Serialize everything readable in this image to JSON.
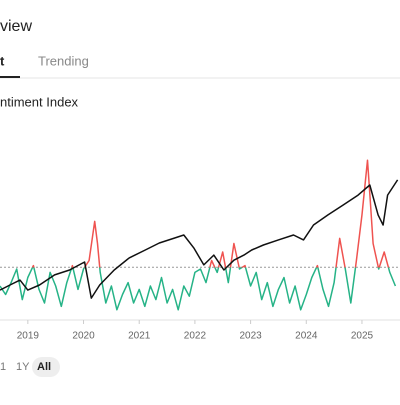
{
  "header": {
    "title": "view"
  },
  "tabs": [
    {
      "label": "t",
      "active": true
    },
    {
      "label": "Trending",
      "active": false
    }
  ],
  "chart_data": {
    "type": "line",
    "title": "ntiment Index",
    "xlim": [
      2018.5,
      2025.64
    ],
    "xticks": [
      2019,
      2020,
      2021,
      2022,
      2023,
      2024,
      2025
    ],
    "ylim": [
      0,
      100
    ],
    "threshold": 31,
    "above_color": "#ef5350",
    "series": [
      {
        "name": "Index",
        "color": "#111111",
        "x": [
          2018.5,
          2018.68,
          2018.86,
          2019.0,
          2019.21,
          2019.48,
          2019.75,
          2020.02,
          2020.14,
          2020.29,
          2020.55,
          2020.82,
          2021.11,
          2021.36,
          2021.63,
          2021.8,
          2021.98,
          2022.16,
          2022.34,
          2022.52,
          2022.7,
          2022.88,
          2023.02,
          2023.23,
          2023.5,
          2023.77,
          2023.95,
          2024.13,
          2024.39,
          2024.66,
          2024.93,
          2025.14,
          2025.29,
          2025.38,
          2025.46,
          2025.64
        ],
        "values": [
          17.6,
          20.6,
          23.5,
          17.6,
          20.6,
          26.5,
          29.4,
          34.1,
          12.9,
          20.6,
          29.4,
          36.5,
          41.2,
          45.3,
          48.2,
          50,
          42.4,
          32.4,
          38.2,
          29.4,
          35.2,
          38.2,
          41.2,
          44.1,
          47.1,
          50,
          47.1,
          55.9,
          61.8,
          67.6,
          73.5,
          79.4,
          61.8,
          55.9,
          73.5,
          82.4
        ]
      },
      {
        "name": "Sentiment",
        "color": "#26b387",
        "x": [
          2018.5,
          2018.6,
          2018.7,
          2018.8,
          2018.9,
          2019.0,
          2019.1,
          2019.2,
          2019.3,
          2019.4,
          2019.5,
          2019.6,
          2019.7,
          2019.8,
          2019.9,
          2020.0,
          2020.1,
          2020.2,
          2020.25,
          2020.3,
          2020.4,
          2020.5,
          2020.6,
          2020.7,
          2020.8,
          2020.9,
          2021.0,
          2021.1,
          2021.2,
          2021.3,
          2021.4,
          2021.5,
          2021.6,
          2021.7,
          2021.8,
          2021.9,
          2022.0,
          2022.1,
          2022.2,
          2022.3,
          2022.4,
          2022.5,
          2022.6,
          2022.7,
          2022.8,
          2022.9,
          2023.0,
          2023.1,
          2023.2,
          2023.3,
          2023.4,
          2023.5,
          2023.6,
          2023.7,
          2023.8,
          2023.9,
          2024.0,
          2024.1,
          2024.2,
          2024.3,
          2024.4,
          2024.5,
          2024.6,
          2024.7,
          2024.8,
          2024.9,
          2025.0,
          2025.1,
          2025.15,
          2025.2,
          2025.3,
          2025.4,
          2025.5,
          2025.6
        ],
        "values": [
          20,
          15,
          22,
          30,
          12,
          25,
          32,
          18,
          10,
          28,
          20,
          8,
          22,
          32,
          18,
          30,
          35,
          58,
          45,
          28,
          10,
          20,
          6,
          15,
          22,
          10,
          18,
          8,
          20,
          12,
          25,
          10,
          18,
          6,
          20,
          14,
          28,
          30,
          22,
          35,
          28,
          40,
          22,
          45,
          30,
          32,
          20,
          28,
          12,
          22,
          8,
          18,
          25,
          10,
          20,
          6,
          15,
          25,
          32,
          18,
          8,
          22,
          48,
          30,
          10,
          35,
          62,
          94,
          70,
          45,
          30,
          40,
          28,
          20
        ]
      }
    ]
  },
  "ranges": [
    "1",
    "1Y",
    "All"
  ],
  "active_range": 2
}
